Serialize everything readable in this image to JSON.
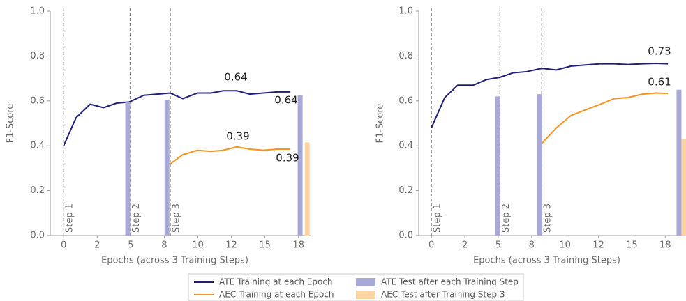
{
  "chart_data": [
    {
      "type": "line",
      "ylabel": "F1-Score",
      "xlabel": "Epochs (across 3 Training Steps)",
      "xlim": [
        -0.4,
        7.36
      ],
      "ylim": [
        0,
        1
      ],
      "xticks": [
        {
          "value": 0,
          "label": "0"
        },
        {
          "value": 1,
          "label": "2"
        },
        {
          "value": 2,
          "label": "5"
        },
        {
          "value": 3,
          "label": "8"
        },
        {
          "value": 4,
          "label": "10"
        },
        {
          "value": 5,
          "label": "12"
        },
        {
          "value": 6,
          "label": "15"
        },
        {
          "value": 7,
          "label": "18"
        }
      ],
      "yticks": [
        {
          "value": 0,
          "label": "0.0"
        },
        {
          "value": 0.2,
          "label": "0.2"
        },
        {
          "value": 0.4,
          "label": "0.4"
        },
        {
          "value": 0.6,
          "label": "0.6"
        },
        {
          "value": 0.8,
          "label": "0.8"
        },
        {
          "value": 1,
          "label": "1.0"
        }
      ],
      "steps": [
        {
          "x": 0,
          "label": "Step 1"
        },
        {
          "x": 1.98,
          "label": "Step 2"
        },
        {
          "x": 3.18,
          "label": "Step 3"
        }
      ],
      "series": [
        {
          "name": "ATE Training at each Epoch",
          "kind": "line",
          "color": "#1f1f7a",
          "x": [
            0,
            0.37,
            0.79,
            1.19,
            1.58,
            1.95,
            2.39,
            2.79,
            3.18,
            3.55,
            3.99,
            4.39,
            4.76,
            5.16,
            5.55,
            5.95,
            6.36,
            6.76
          ],
          "values": [
            0.4,
            0.525,
            0.585,
            0.57,
            0.59,
            0.595,
            0.625,
            0.63,
            0.635,
            0.61,
            0.635,
            0.635,
            0.645,
            0.645,
            0.63,
            0.635,
            0.64,
            0.64
          ]
        },
        {
          "name": "AEC Training at each Epoch",
          "kind": "line",
          "color": "#f7931e",
          "x": [
            3.18,
            3.55,
            3.99,
            4.39,
            4.76,
            5.16,
            5.55,
            5.95,
            6.36,
            6.76
          ],
          "values": [
            0.32,
            0.36,
            0.38,
            0.375,
            0.38,
            0.395,
            0.385,
            0.38,
            0.385,
            0.385
          ]
        },
        {
          "name": "ATE Test after each Training Step",
          "kind": "bar",
          "color": "#a9a9d9",
          "x": [
            1.91,
            3.08,
            7.05
          ],
          "values": [
            0.595,
            0.605,
            0.625
          ]
        },
        {
          "name": "AEC Test after Training Step 3",
          "kind": "bar",
          "color": "#fdd5a5",
          "x": [
            7.26
          ],
          "values": [
            0.415
          ]
        }
      ],
      "annotations": [
        "0.64",
        "0.64",
        "0.39",
        "0.39"
      ]
    },
    {
      "type": "line",
      "ylabel": "F1-Score",
      "xlabel": "Epochs (across 3 Training Steps)",
      "xlim": [
        -0.38,
        7.62
      ],
      "ylim": [
        0,
        1
      ],
      "xticks": [
        {
          "value": 0,
          "label": "0"
        },
        {
          "value": 1,
          "label": "2"
        },
        {
          "value": 2,
          "label": "5"
        },
        {
          "value": 3,
          "label": "8"
        },
        {
          "value": 4,
          "label": "10"
        },
        {
          "value": 5,
          "label": "12"
        },
        {
          "value": 6,
          "label": "15"
        },
        {
          "value": 7,
          "label": "18"
        }
      ],
      "yticks": [
        {
          "value": 0,
          "label": "0.0"
        },
        {
          "value": 0.2,
          "label": "0.2"
        },
        {
          "value": 0.4,
          "label": "0.4"
        },
        {
          "value": 0.6,
          "label": "0.6"
        },
        {
          "value": 0.8,
          "label": "0.8"
        },
        {
          "value": 1,
          "label": "1.0"
        }
      ],
      "steps": [
        {
          "x": 0,
          "label": "Step 1"
        },
        {
          "x": 2.05,
          "label": "Step 2"
        },
        {
          "x": 3.3,
          "label": "Step 3"
        }
      ],
      "series": [
        {
          "name": "ATE Training at each Epoch",
          "kind": "line",
          "color": "#1f1f7a",
          "x": [
            0,
            0.4,
            0.79,
            1.25,
            1.65,
            2.05,
            2.44,
            2.84,
            3.3,
            3.74,
            4.18,
            4.61,
            5.05,
            5.47,
            5.89,
            6.31,
            6.72,
            7.08
          ],
          "values": [
            0.48,
            0.615,
            0.67,
            0.67,
            0.695,
            0.705,
            0.725,
            0.73,
            0.745,
            0.738,
            0.755,
            0.76,
            0.765,
            0.765,
            0.762,
            0.765,
            0.767,
            0.765
          ]
        },
        {
          "name": "AEC Training at each Epoch",
          "kind": "line",
          "color": "#f7931e",
          "x": [
            3.3,
            3.74,
            4.18,
            4.61,
            5.05,
            5.47,
            5.89,
            6.31,
            6.72,
            7.08
          ],
          "values": [
            0.41,
            0.48,
            0.535,
            0.56,
            0.585,
            0.61,
            0.615,
            0.63,
            0.635,
            0.633
          ]
        },
        {
          "name": "ATE Test after each Training Step",
          "kind": "bar",
          "color": "#a9a9d9",
          "x": [
            1.98,
            3.24,
            7.41
          ],
          "values": [
            0.62,
            0.63,
            0.65
          ]
        },
        {
          "name": "AEC Test after Training Step 3",
          "kind": "bar",
          "color": "#fdd5a5",
          "x": [
            7.56
          ],
          "values": [
            0.43
          ]
        }
      ],
      "annotations": [
        "0.73",
        "0.61"
      ]
    }
  ]
}
